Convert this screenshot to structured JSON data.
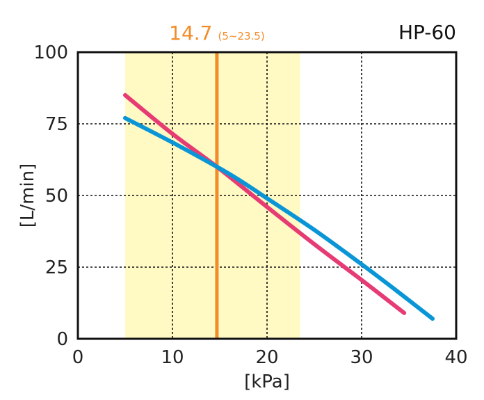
{
  "chart_data": {
    "type": "line",
    "title": "HP-60",
    "xlabel": "[kPa]",
    "ylabel": "[L/min]",
    "xlim": [
      0,
      40
    ],
    "ylim": [
      0,
      100
    ],
    "xticks": [
      0,
      10,
      20,
      30,
      40
    ],
    "yticks": [
      0,
      25,
      50,
      75,
      100
    ],
    "grid": "dotted",
    "operating_range": {
      "value": 14.7,
      "value_label": "14.7",
      "range": [
        5,
        23.5
      ],
      "range_label": "(5~23.5)",
      "band_color": "#fff9c4",
      "line_color": "#f28c28"
    },
    "series": [
      {
        "color": "#e63c73",
        "points": [
          [
            5,
            85
          ],
          [
            10,
            71.5
          ],
          [
            14.7,
            60
          ],
          [
            20,
            46
          ],
          [
            25,
            33
          ],
          [
            30,
            20.5
          ],
          [
            34.5,
            9
          ]
        ]
      },
      {
        "color": "#0a96d6",
        "points": [
          [
            5,
            77
          ],
          [
            10,
            68.5
          ],
          [
            14.7,
            60
          ],
          [
            17,
            55.5
          ],
          [
            20,
            49
          ],
          [
            25,
            38
          ],
          [
            30,
            26
          ],
          [
            34,
            16
          ],
          [
            37.5,
            7
          ]
        ]
      }
    ]
  }
}
